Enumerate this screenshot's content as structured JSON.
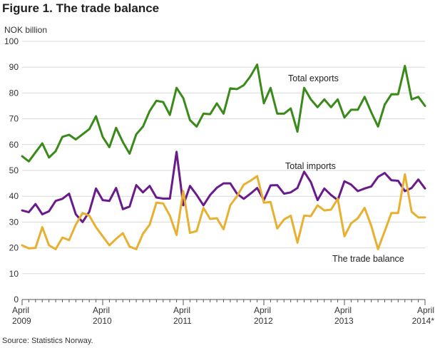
{
  "figure_title": "Figure 1. The trade balance",
  "source": "Source: Statistics Norway.",
  "colors": {
    "exports": "#3a8a1a",
    "imports": "#6a1a8a",
    "balance": "#e8b030",
    "grid": "#d8d8d8",
    "axis": "#555555"
  },
  "chart_data": {
    "type": "line",
    "title": "Figure 1. The trade balance",
    "ylabel": "NOK billion",
    "xlabel": "",
    "ylim": [
      0,
      100
    ],
    "yticks": [
      0,
      10,
      20,
      30,
      40,
      50,
      60,
      70,
      80,
      90,
      100
    ],
    "grid": true,
    "x_tick_labels": [
      {
        "month": "April",
        "year": "2009"
      },
      {
        "month": "April",
        "year": "2010"
      },
      {
        "month": "April",
        "year": "2011"
      },
      {
        "month": "April",
        "year": "2012"
      },
      {
        "month": "April",
        "year": "2013"
      },
      {
        "month": "April",
        "year": "2014*"
      }
    ],
    "x_count": 61,
    "series": [
      {
        "name": "Total exports",
        "key": "exports",
        "values": [
          55.5,
          53.5,
          57,
          60.5,
          55,
          57.5,
          63,
          63.8,
          62,
          64,
          66,
          71,
          63,
          59,
          66.5,
          61,
          56.5,
          64,
          67,
          73,
          77,
          76.5,
          71.5,
          82,
          78,
          69.5,
          67,
          72,
          71.8,
          76,
          72,
          81.8,
          81.5,
          83,
          86.5,
          91,
          76,
          82,
          72,
          72,
          74,
          65,
          82,
          77.5,
          74.5,
          77.5,
          74.5,
          77.5,
          70.5,
          73.5,
          73.5,
          78.5,
          72.5,
          67,
          75.5,
          79.5,
          79.5,
          90.5,
          77.5,
          78.5,
          75
        ]
      },
      {
        "name": "Total imports",
        "key": "imports",
        "values": [
          34.5,
          33.8,
          37,
          33,
          34.2,
          38.2,
          39,
          41,
          33,
          30,
          34,
          43,
          38.5,
          38.2,
          43.2,
          35,
          36,
          44.3,
          41.5,
          44,
          39.5,
          39.1,
          39.1,
          57.2,
          36.5,
          44,
          40.5,
          36.5,
          40.5,
          43.3,
          45,
          45,
          41,
          39,
          41,
          43.2,
          38.5,
          44.2,
          44.3,
          41,
          41.5,
          43.2,
          49.5,
          45.5,
          38.5,
          43,
          40.5,
          38.5,
          45.8,
          44.5,
          42,
          43,
          43.8,
          47.5,
          49,
          46.2,
          46,
          42,
          43.2,
          46.5,
          43
        ]
      },
      {
        "name": "The trade balance",
        "key": "balance",
        "values": [
          21,
          19.8,
          20,
          28,
          21,
          19.5,
          24,
          23,
          29,
          33.5,
          32.5,
          28,
          24.5,
          21,
          23.5,
          25.7,
          20.5,
          19.5,
          25.5,
          29,
          37.5,
          37.2,
          32.5,
          25,
          42,
          25.8,
          26.5,
          35.5,
          31.2,
          31.5,
          27.2,
          36.5,
          40,
          44.5,
          46,
          47.8,
          37.5,
          37.8,
          27.5,
          31,
          32.5,
          22,
          32.5,
          32.3,
          36.5,
          34.5,
          34.8,
          39,
          24.5,
          29.5,
          31.5,
          35.5,
          28.5,
          19.5,
          26.5,
          33.5,
          33.5,
          48.5,
          34,
          31.8,
          31.8
        ]
      }
    ],
    "annotations": [
      {
        "text": "Total exports",
        "series": "exports"
      },
      {
        "text": "Total imports",
        "series": "imports"
      },
      {
        "text": "The trade balance",
        "series": "balance"
      }
    ]
  }
}
